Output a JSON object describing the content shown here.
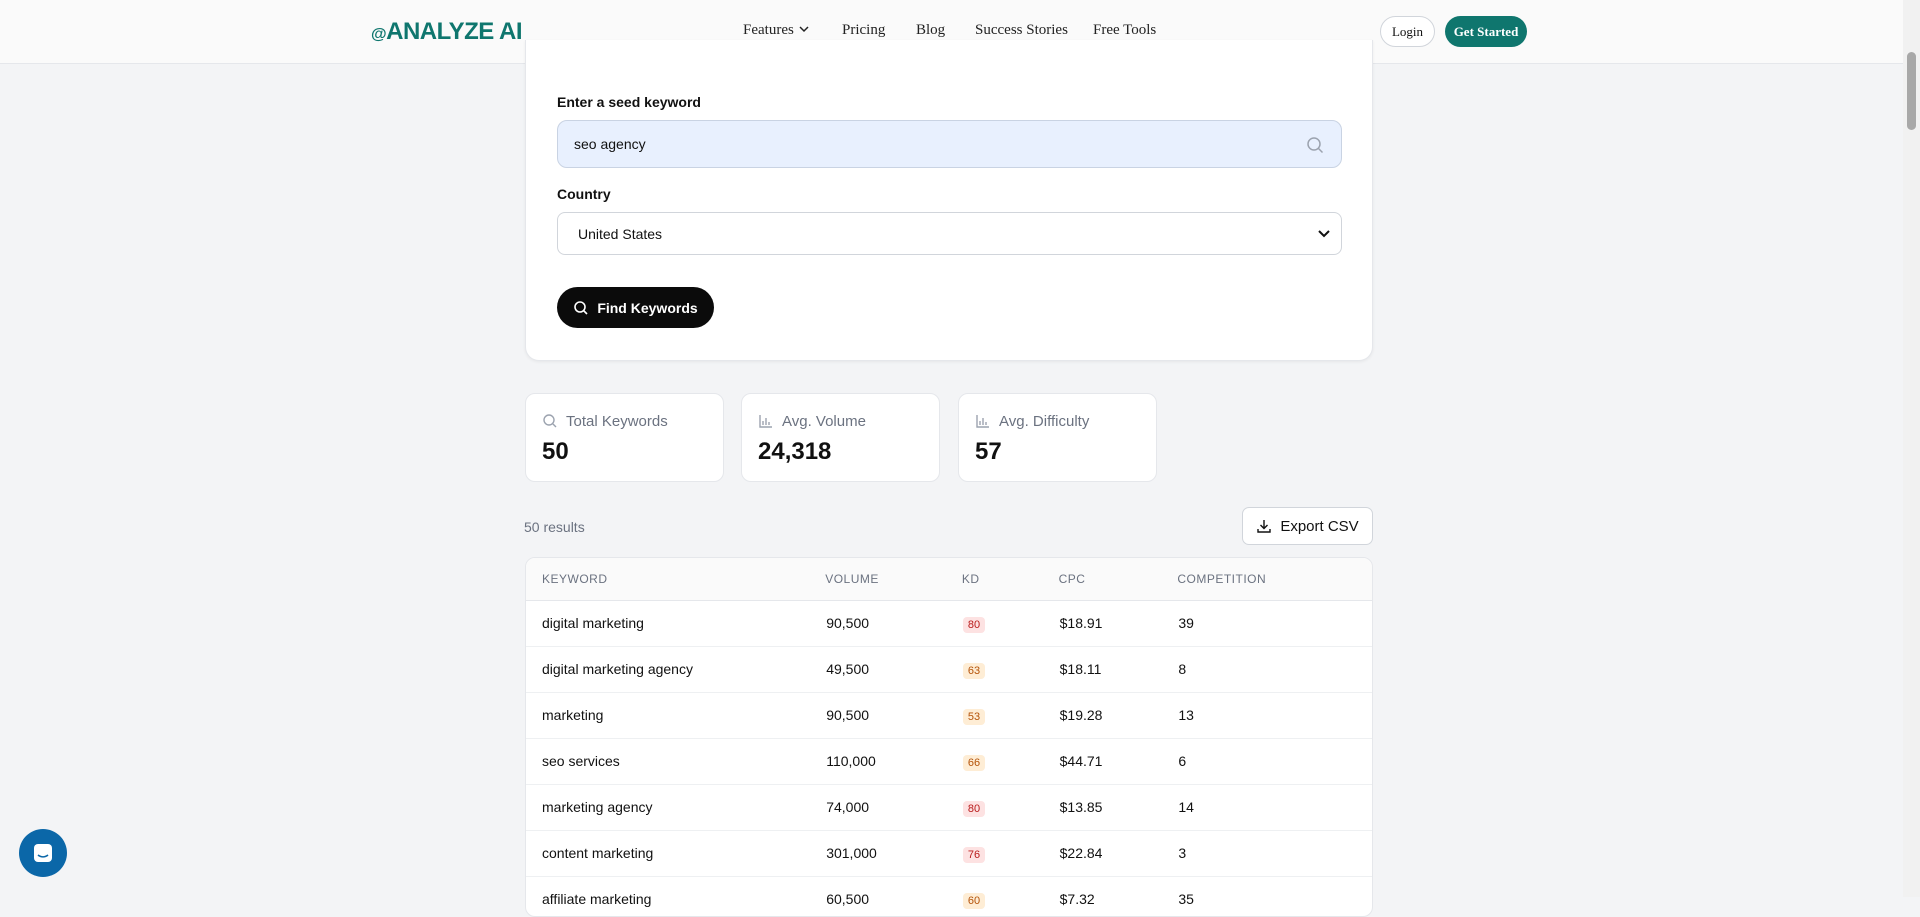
{
  "header": {
    "logo": "ANALYZE AI",
    "nav": [
      "Features",
      "Pricing",
      "Blog",
      "Success Stories",
      "Free Tools"
    ],
    "login": "Login",
    "cta": "Get Started"
  },
  "form": {
    "keyword_label": "Enter a seed keyword",
    "keyword_value": "seo agency",
    "country_label": "Country",
    "country_value": "United States",
    "button": "Find Keywords"
  },
  "stats": [
    {
      "label": "Total Keywords",
      "value": "50"
    },
    {
      "label": "Avg. Volume",
      "value": "24,318"
    },
    {
      "label": "Avg. Difficulty",
      "value": "57"
    }
  ],
  "results": {
    "count": "50 results",
    "export": "Export CSV"
  },
  "table": {
    "columns": [
      "KEYWORD",
      "VOLUME",
      "KD",
      "CPC",
      "COMPETITION"
    ],
    "rows": [
      [
        "digital marketing",
        "90,500",
        "80",
        "$18.91",
        "39"
      ],
      [
        "digital marketing agency",
        "49,500",
        "63",
        "$18.11",
        "8"
      ],
      [
        "marketing",
        "90,500",
        "53",
        "$19.28",
        "13"
      ],
      [
        "seo services",
        "110,000",
        "66",
        "$44.71",
        "6"
      ],
      [
        "marketing agency",
        "74,000",
        "80",
        "$13.85",
        "14"
      ],
      [
        "content marketing",
        "301,000",
        "76",
        "$22.84",
        "3"
      ],
      [
        "affiliate marketing",
        "60,500",
        "60",
        "$7.32",
        "35"
      ]
    ]
  }
}
